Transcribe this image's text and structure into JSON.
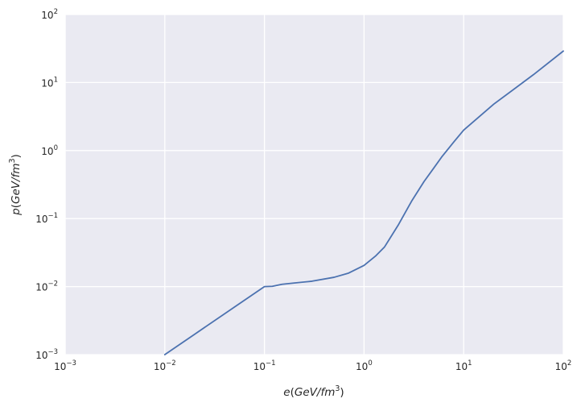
{
  "chart_data": {
    "type": "line",
    "x_scale": "log",
    "y_scale": "log",
    "xlim": [
      0.001,
      100
    ],
    "ylim": [
      0.001,
      100
    ],
    "grid": true,
    "background": "#EAEAF2",
    "grid_color": "#FFFFFF",
    "line_color": "#4C72B0",
    "x_ticks": [
      {
        "base": "10",
        "exp": "−3",
        "value": 0.001
      },
      {
        "base": "10",
        "exp": "−2",
        "value": 0.01
      },
      {
        "base": "10",
        "exp": "−1",
        "value": 0.1
      },
      {
        "base": "10",
        "exp": "0",
        "value": 1
      },
      {
        "base": "10",
        "exp": "1",
        "value": 10
      },
      {
        "base": "10",
        "exp": "2",
        "value": 100
      }
    ],
    "y_ticks": [
      {
        "base": "10",
        "exp": "−3",
        "value": 0.001
      },
      {
        "base": "10",
        "exp": "−2",
        "value": 0.01
      },
      {
        "base": "10",
        "exp": "−1",
        "value": 0.1
      },
      {
        "base": "10",
        "exp": "0",
        "value": 1
      },
      {
        "base": "10",
        "exp": "1",
        "value": 10
      },
      {
        "base": "10",
        "exp": "2",
        "value": 100
      }
    ],
    "xlabel": {
      "var": "e",
      "open": "(",
      "unit": "GeV",
      "slash": "/",
      "unit2": "fm",
      "exp": "3",
      "close": ")"
    },
    "ylabel": {
      "var": "p",
      "open": "(",
      "unit": "GeV",
      "slash": "/",
      "unit2": "fm",
      "exp": "3",
      "close": ")"
    },
    "series": [
      {
        "x": [
          0.01,
          0.02,
          0.05,
          0.1,
          0.12,
          0.15,
          0.2,
          0.3,
          0.5,
          0.7,
          1.0,
          1.3,
          1.6,
          1.8,
          2.2,
          3.0,
          4.0,
          5.0,
          6.0,
          8.0,
          10,
          20,
          50,
          100
        ],
        "y": [
          0.001,
          0.002,
          0.005,
          0.01,
          0.0101,
          0.0108,
          0.0113,
          0.012,
          0.0137,
          0.0158,
          0.0205,
          0.028,
          0.038,
          0.05,
          0.08,
          0.18,
          0.35,
          0.55,
          0.8,
          1.35,
          2.0,
          4.8,
          13.0,
          29.0
        ]
      }
    ]
  }
}
